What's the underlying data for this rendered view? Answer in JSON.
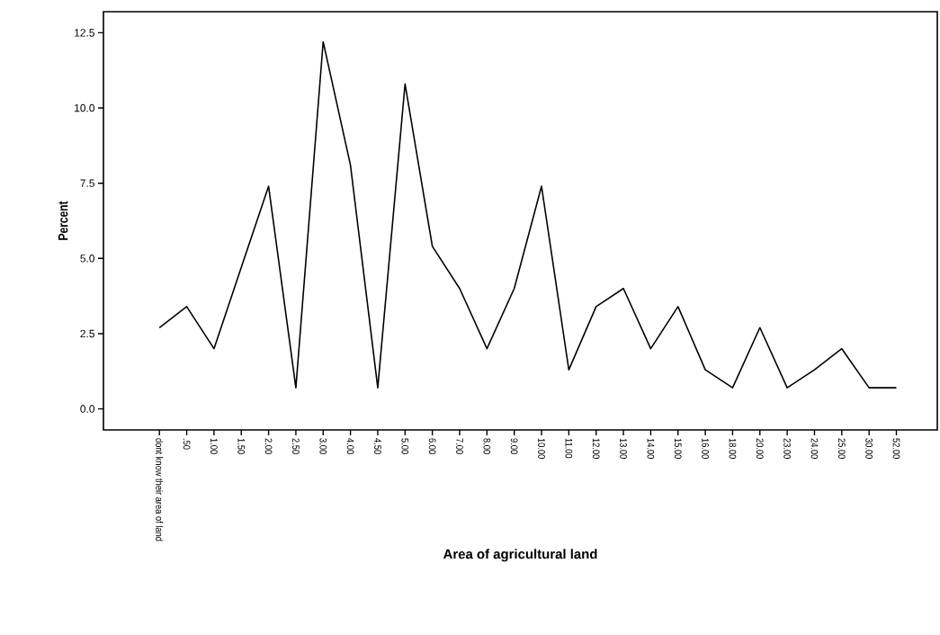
{
  "chart_data": {
    "type": "line",
    "xlabel": "Area of agricultural land",
    "ylabel": "Percent",
    "categories": [
      "dont know their area of land",
      ".50",
      "1.00",
      "1.50",
      "2.00",
      "2.50",
      "3.00",
      "4.00",
      "4.50",
      "5.00",
      "6.00",
      "7.00",
      "8.00",
      "9.00",
      "10.00",
      "11.00",
      "12.00",
      "13.00",
      "14.00",
      "15.00",
      "16.00",
      "18.00",
      "20.00",
      "23.00",
      "24.00",
      "25.00",
      "30.00",
      "52.00"
    ],
    "values": [
      2.7,
      3.4,
      2.0,
      4.7,
      7.4,
      0.7,
      12.2,
      8.1,
      0.7,
      10.8,
      5.4,
      4.0,
      2.0,
      4.0,
      7.4,
      1.3,
      3.4,
      4.0,
      2.0,
      3.4,
      1.3,
      0.7,
      2.7,
      0.7,
      1.3,
      2.0,
      0.7,
      0.7
    ],
    "color": "#000000",
    "ylim": [
      -0.7,
      13.2
    ],
    "yticks": [
      {
        "value": 0,
        "label": "0.0"
      },
      {
        "value": 2.5,
        "label": "2.5"
      },
      {
        "value": 5,
        "label": "5.0"
      },
      {
        "value": 7.5,
        "label": "7.5"
      },
      {
        "value": 10,
        "label": "10.0"
      },
      {
        "value": 12.5,
        "label": "12.5"
      }
    ],
    "grid": false,
    "marker": "none",
    "line_style": "solid"
  }
}
